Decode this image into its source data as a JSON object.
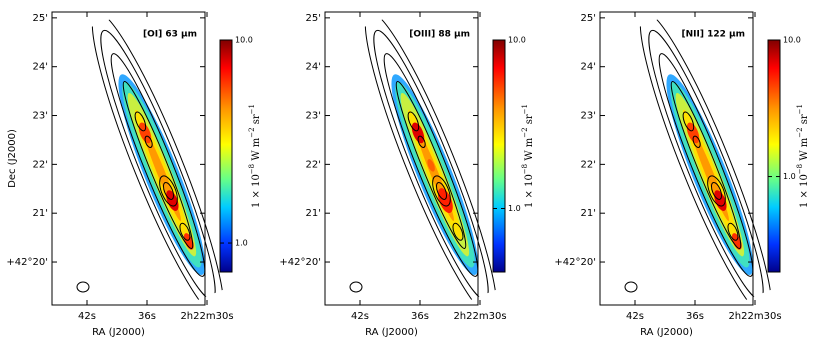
{
  "chart_data": [
    {
      "type": "map",
      "title": "[OI] 63 μm",
      "xlabel": "RA (J2000)",
      "ylabel": "Dec (J2000)",
      "xlim": [
        45.5,
        30.2
      ],
      "xticks": [
        {
          "value": 42,
          "label": "42s"
        },
        {
          "value": 36,
          "label": "36s"
        },
        {
          "value": 30,
          "label": "2h22m30s"
        }
      ],
      "ylim": [
        19.12,
        25.12
      ],
      "yticks": [
        {
          "value": 25,
          "label": "25'"
        },
        {
          "value": 24,
          "label": "24'"
        },
        {
          "value": 23,
          "label": "23'"
        },
        {
          "value": 22,
          "label": "22'"
        },
        {
          "value": 21,
          "label": "21'"
        },
        {
          "value": 20,
          "label": "+42°20'"
        }
      ],
      "colorbar_lim": [
        0.72,
        10
      ],
      "colorbar_log": true,
      "colorbar_ticks": [
        {
          "value": 1,
          "label": "1.0"
        },
        {
          "value": 10,
          "label": "10.0"
        }
      ],
      "colorbar_label_parts": [
        "1 × 10",
        "−8",
        " W m",
        "−2",
        " sr",
        "−1"
      ]
    },
    {
      "type": "map",
      "title": "[OIII] 88 μm",
      "xlabel": "RA (J2000)",
      "xlim": [
        45.5,
        30.2
      ],
      "xticks": [
        {
          "value": 42,
          "label": "42s"
        },
        {
          "value": 36,
          "label": "36s"
        },
        {
          "value": 30,
          "label": "2h22m30s"
        }
      ],
      "ylim": [
        19.12,
        25.12
      ],
      "yticks": [
        {
          "value": 25,
          "label": "25'"
        },
        {
          "value": 24,
          "label": "24'"
        },
        {
          "value": 23,
          "label": "23'"
        },
        {
          "value": 22,
          "label": "22'"
        },
        {
          "value": 21,
          "label": "21'"
        },
        {
          "value": 20,
          "label": "+42°20'"
        }
      ],
      "colorbar_lim": [
        0.42,
        10
      ],
      "colorbar_log": true,
      "colorbar_ticks": [
        {
          "value": 1,
          "label": "1.0"
        },
        {
          "value": 10,
          "label": "10.0"
        }
      ],
      "colorbar_label_parts": [
        "1 × 10",
        "−8",
        " W m",
        "−2",
        " sr",
        "−1"
      ]
    },
    {
      "type": "map",
      "title": "[NII] 122 μm",
      "xlabel": "RA (J2000)",
      "xlim": [
        45.5,
        30.2
      ],
      "xticks": [
        {
          "value": 42,
          "label": "42s"
        },
        {
          "value": 36,
          "label": "36s"
        },
        {
          "value": 30,
          "label": "2h22m30s"
        }
      ],
      "ylim": [
        19.12,
        25.12
      ],
      "yticks": [
        {
          "value": 25,
          "label": "25'"
        },
        {
          "value": 24,
          "label": "24'"
        },
        {
          "value": 23,
          "label": "23'"
        },
        {
          "value": 22,
          "label": "22'"
        },
        {
          "value": 21,
          "label": "21'"
        },
        {
          "value": 20,
          "label": "+42°20'"
        }
      ],
      "colorbar_lim": [
        0.2,
        10
      ],
      "colorbar_log": true,
      "colorbar_ticks": [
        {
          "value": 1,
          "label": "1.0"
        },
        {
          "value": 10,
          "label": "10.0"
        }
      ],
      "colorbar_label_parts": [
        "1 × 10",
        "−8",
        " W m",
        "−2",
        " sr",
        "−1"
      ]
    }
  ]
}
